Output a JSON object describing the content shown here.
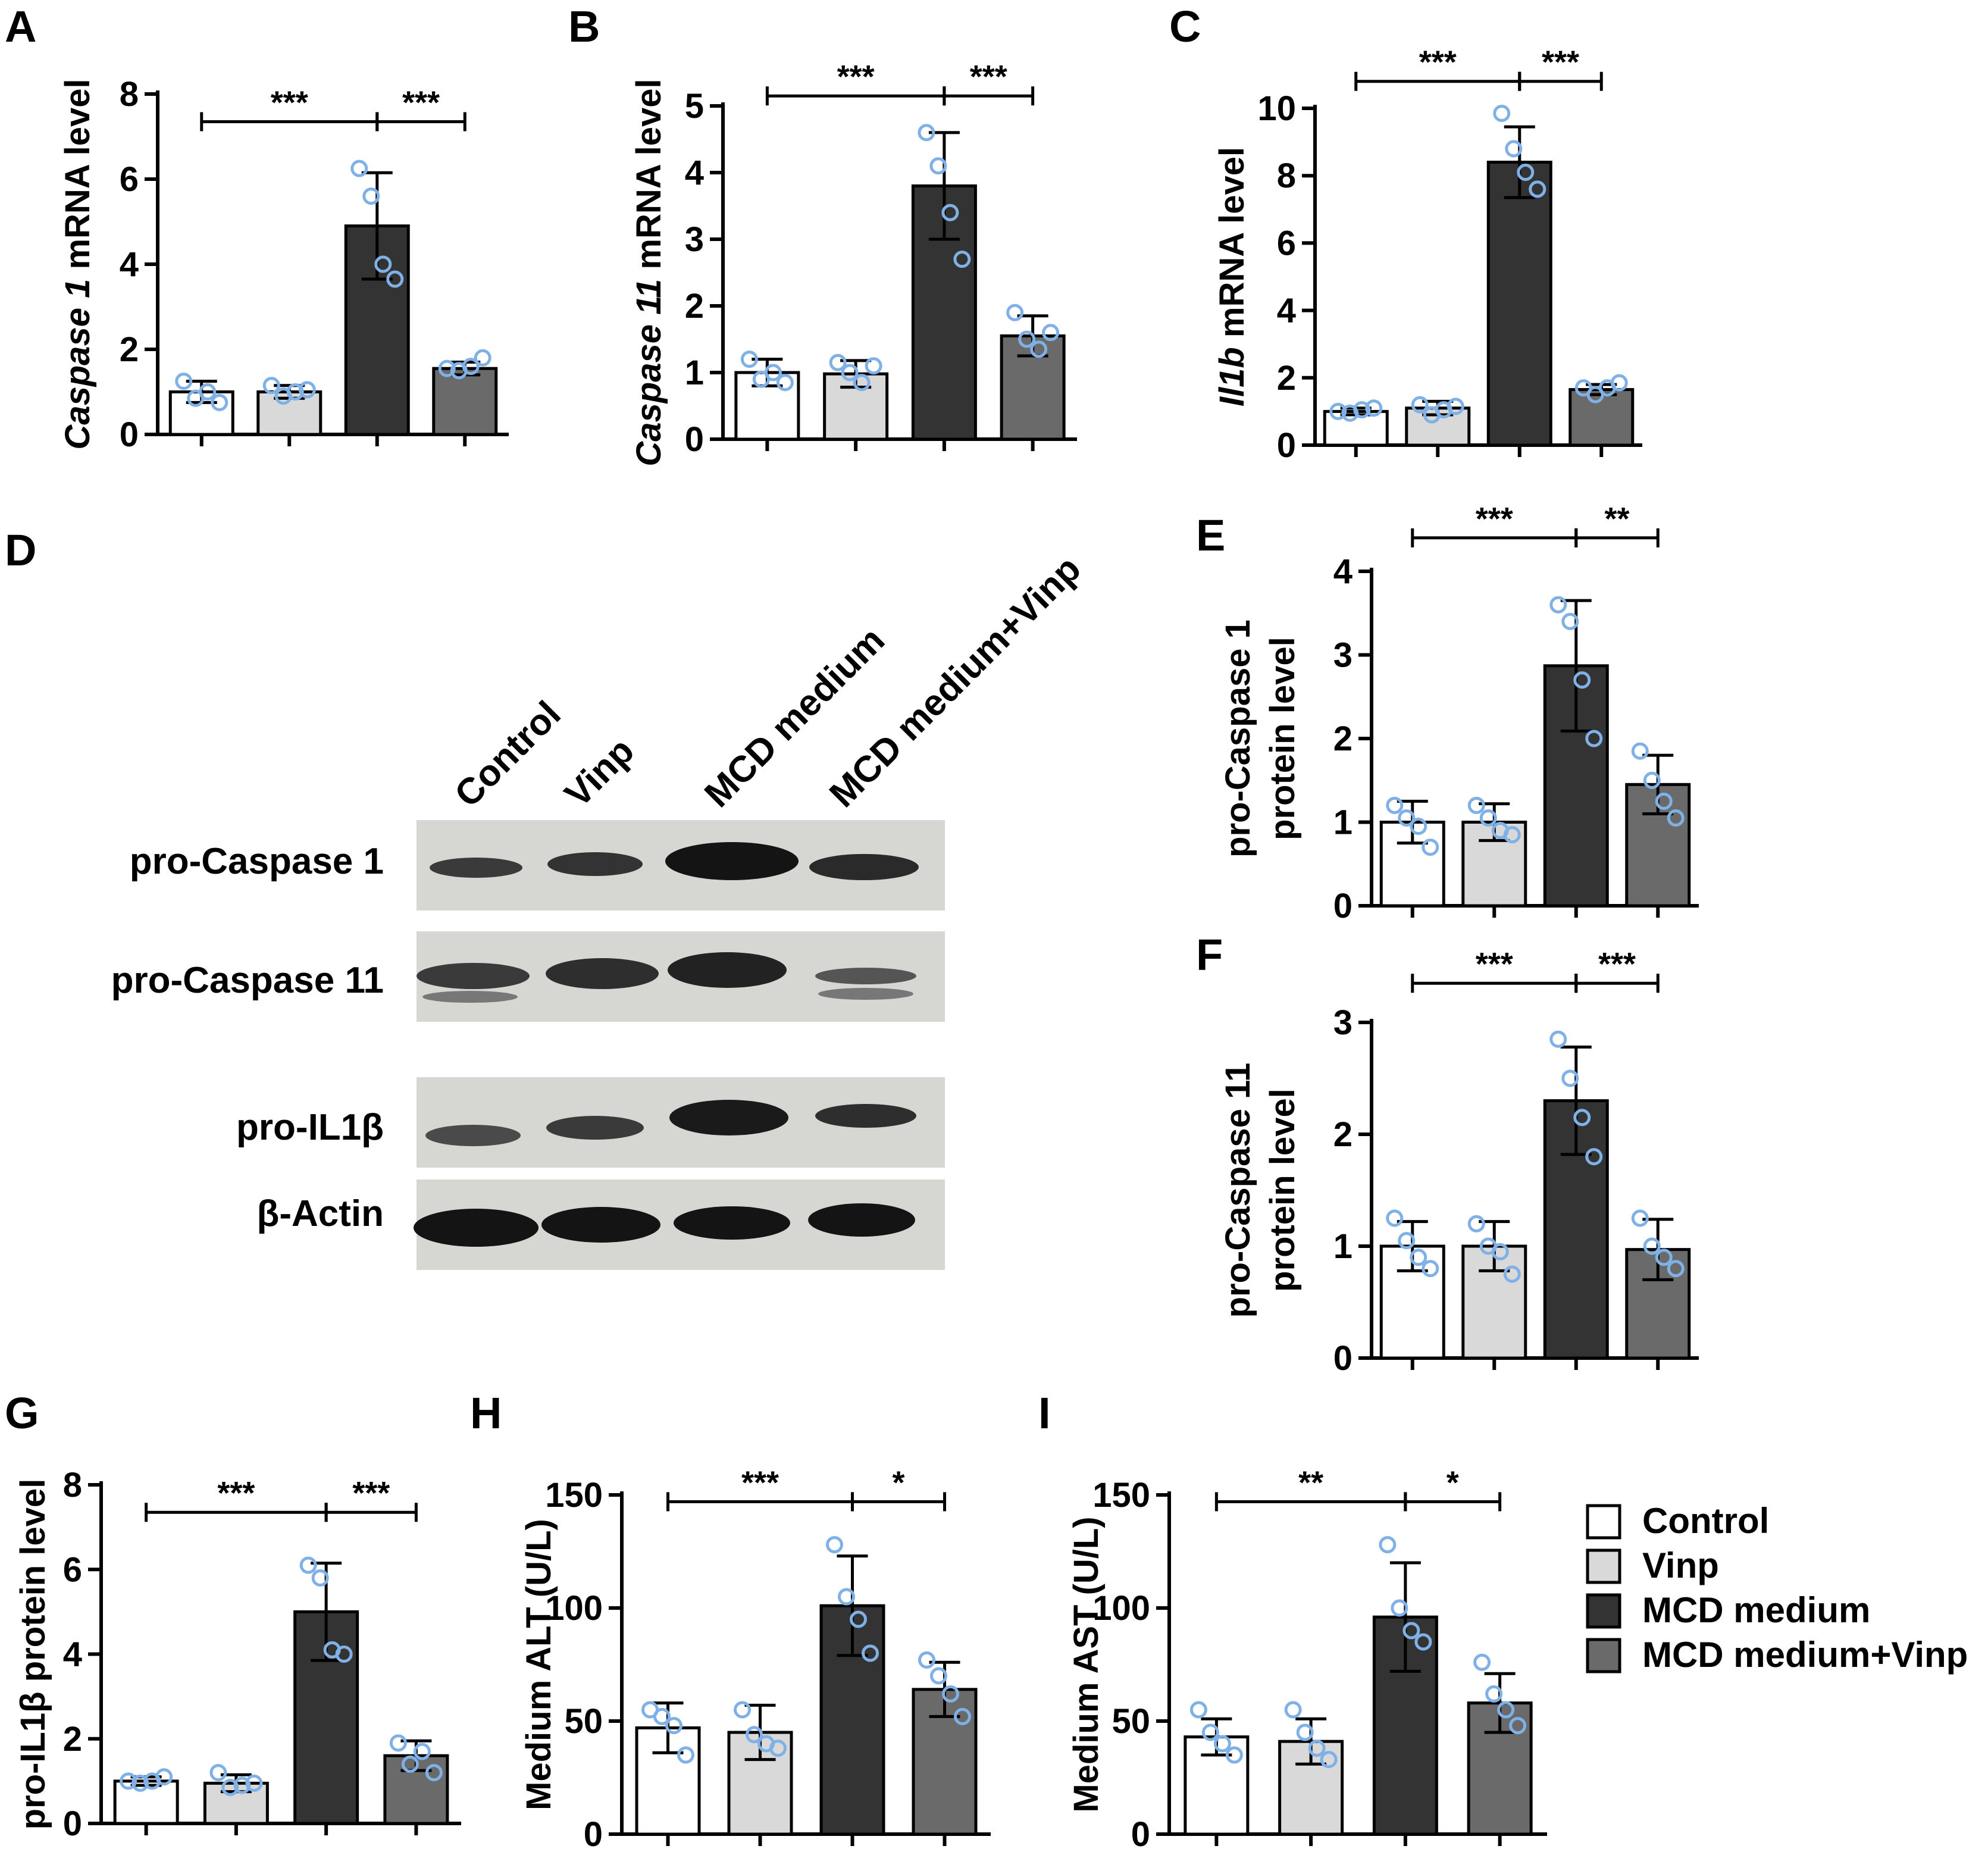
{
  "colors": {
    "Control": "#ffffff",
    "Vinp": "#d9d9d9",
    "MCD medium": "#333333",
    "MCD medium+Vinp": "#6a6a6a",
    "points": "#7fb0e6",
    "axis": "#000000"
  },
  "legend": {
    "items": [
      "Control",
      "Vinp",
      "MCD medium",
      "MCD medium+Vinp"
    ],
    "placement": "bottom-right"
  },
  "western_blot": {
    "letter": "D",
    "lanes": [
      "Control",
      "Vinp",
      "MCD medium",
      "MCD medium+Vinp"
    ],
    "rows": [
      "pro-Caspase 1",
      "pro-Caspase 11",
      "pro-IL1β",
      "β-Actin"
    ]
  },
  "chart_data": [
    {
      "letter": "A",
      "type": "bar",
      "categories": [
        "Control",
        "Vinp",
        "MCD medium",
        "MCD medium+Vinp"
      ],
      "values": [
        1.0,
        1.0,
        4.9,
        1.55
      ],
      "errors": [
        0.25,
        0.15,
        1.25,
        0.15
      ],
      "points": [
        [
          1.25,
          0.85,
          1.0,
          0.75
        ],
        [
          1.15,
          0.9,
          1.0,
          1.05
        ],
        [
          6.25,
          5.6,
          4.0,
          3.65
        ],
        [
          1.55,
          1.5,
          1.6,
          1.8
        ]
      ],
      "ylabel_italic": "Caspase 1",
      "ylabel_rest": " mRNA level",
      "ylim": [
        0,
        8
      ],
      "yticks": [
        0,
        2,
        4,
        6,
        8
      ],
      "significance": [
        {
          "from": 0,
          "to": 2,
          "label": "***",
          "y": 7.35
        },
        {
          "from": 2,
          "to": 3,
          "label": "***",
          "y": 7.35
        }
      ]
    },
    {
      "letter": "B",
      "type": "bar",
      "categories": [
        "Control",
        "Vinp",
        "MCD medium",
        "MCD medium+Vinp"
      ],
      "values": [
        1.0,
        0.98,
        3.8,
        1.55
      ],
      "errors": [
        0.2,
        0.2,
        0.8,
        0.3
      ],
      "points": [
        [
          1.2,
          0.9,
          1.0,
          0.85
        ],
        [
          1.15,
          1.0,
          0.85,
          1.1
        ],
        [
          4.6,
          4.1,
          3.4,
          2.7
        ],
        [
          1.9,
          1.5,
          1.35,
          1.6
        ]
      ],
      "ylabel_italic": "Caspase 11",
      "ylabel_rest": " mRNA level",
      "ylim": [
        0,
        5
      ],
      "yticks": [
        0,
        1,
        2,
        3,
        4,
        5
      ],
      "significance": [
        {
          "from": 0,
          "to": 2,
          "label": "***",
          "y": 5.15
        },
        {
          "from": 2,
          "to": 3,
          "label": "***",
          "y": 5.15
        }
      ]
    },
    {
      "letter": "C",
      "type": "bar",
      "categories": [
        "Control",
        "Vinp",
        "MCD medium",
        "MCD medium+Vinp"
      ],
      "values": [
        1.0,
        1.1,
        8.4,
        1.65
      ],
      "errors": [
        0.1,
        0.2,
        1.05,
        0.15
      ],
      "points": [
        [
          1.0,
          0.95,
          1.05,
          1.1
        ],
        [
          1.2,
          0.9,
          1.05,
          1.15
        ],
        [
          9.85,
          8.8,
          8.1,
          7.6
        ],
        [
          1.7,
          1.5,
          1.7,
          1.85
        ]
      ],
      "ylabel_italic": "Il1b",
      "ylabel_rest": " mRNA level",
      "ylim": [
        0,
        10
      ],
      "yticks": [
        0,
        2,
        4,
        6,
        8,
        10
      ],
      "significance": [
        {
          "from": 0,
          "to": 2,
          "label": "***",
          "y": 10.8
        },
        {
          "from": 2,
          "to": 3,
          "label": "***",
          "y": 10.8
        }
      ]
    },
    {
      "letter": "E",
      "type": "bar",
      "categories": [
        "Control",
        "Vinp",
        "MCD medium",
        "MCD medium+Vinp"
      ],
      "values": [
        1.0,
        1.0,
        2.87,
        1.45
      ],
      "errors": [
        0.25,
        0.22,
        0.78,
        0.35
      ],
      "points": [
        [
          1.2,
          1.05,
          0.95,
          0.7
        ],
        [
          1.2,
          1.05,
          0.9,
          0.85
        ],
        [
          3.6,
          3.4,
          2.7,
          2.0
        ],
        [
          1.85,
          1.5,
          1.25,
          1.05
        ]
      ],
      "ylabel_line1": "pro-Caspase 1",
      "ylabel_line2": "protein level",
      "ylim": [
        0,
        4
      ],
      "yticks": [
        0,
        1,
        2,
        3,
        4
      ],
      "significance": [
        {
          "from": 0,
          "to": 2,
          "label": "***",
          "y": 4.4
        },
        {
          "from": 2,
          "to": 3,
          "label": "**",
          "y": 4.4
        }
      ]
    },
    {
      "letter": "F",
      "type": "bar",
      "categories": [
        "Control",
        "Vinp",
        "MCD medium",
        "MCD medium+Vinp"
      ],
      "values": [
        1.0,
        1.0,
        2.3,
        0.97
      ],
      "errors": [
        0.22,
        0.22,
        0.48,
        0.27
      ],
      "points": [
        [
          1.25,
          1.05,
          0.9,
          0.8
        ],
        [
          1.2,
          1.0,
          0.95,
          0.75
        ],
        [
          2.85,
          2.5,
          2.15,
          1.8
        ],
        [
          1.25,
          1.0,
          0.9,
          0.8
        ]
      ],
      "ylabel_line1": "pro-Caspase 11",
      "ylabel_line2": "protein level",
      "ylim": [
        0,
        3
      ],
      "yticks": [
        0,
        1,
        2,
        3
      ],
      "significance": [
        {
          "from": 0,
          "to": 2,
          "label": "***",
          "y": 3.35
        },
        {
          "from": 2,
          "to": 3,
          "label": "***",
          "y": 3.35
        }
      ]
    },
    {
      "letter": "G",
      "type": "bar",
      "categories": [
        "Control",
        "Vinp",
        "MCD medium",
        "MCD medium+Vinp"
      ],
      "values": [
        1.0,
        0.95,
        5.0,
        1.6
      ],
      "errors": [
        0.1,
        0.2,
        1.15,
        0.35
      ],
      "points": [
        [
          1.0,
          0.95,
          1.0,
          1.1
        ],
        [
          1.2,
          0.85,
          0.9,
          0.95
        ],
        [
          6.1,
          5.8,
          4.1,
          4.0
        ],
        [
          1.9,
          1.4,
          1.7,
          1.2
        ]
      ],
      "ylabel": "pro-IL1β protein level",
      "ylim": [
        0,
        8
      ],
      "yticks": [
        0,
        2,
        4,
        6,
        8
      ],
      "significance": [
        {
          "from": 0,
          "to": 2,
          "label": "***",
          "y": 7.35
        },
        {
          "from": 2,
          "to": 3,
          "label": "***",
          "y": 7.35
        }
      ]
    },
    {
      "letter": "H",
      "type": "bar",
      "categories": [
        "Control",
        "Vinp",
        "MCD medium",
        "MCD medium+Vinp"
      ],
      "values": [
        47,
        45,
        101,
        64
      ],
      "errors": [
        11,
        12,
        22,
        12
      ],
      "points": [
        [
          55,
          52,
          48,
          35
        ],
        [
          55,
          44,
          40,
          38
        ],
        [
          128,
          105,
          95,
          80
        ],
        [
          77,
          70,
          62,
          52
        ]
      ],
      "ylabel": "Medium ALT (U/L)",
      "ylim": [
        0,
        150
      ],
      "yticks": [
        0,
        50,
        100,
        150
      ],
      "significance": [
        {
          "from": 0,
          "to": 2,
          "label": "***",
          "y": 147
        },
        {
          "from": 2,
          "to": 3,
          "label": "*",
          "y": 147
        }
      ]
    },
    {
      "letter": "I",
      "type": "bar",
      "categories": [
        "Control",
        "Vinp",
        "MCD medium",
        "MCD medium+Vinp"
      ],
      "values": [
        43,
        41,
        96,
        58
      ],
      "errors": [
        8,
        10,
        24,
        13
      ],
      "points": [
        [
          55,
          45,
          40,
          35
        ],
        [
          55,
          45,
          38,
          33
        ],
        [
          128,
          100,
          90,
          85
        ],
        [
          76,
          62,
          55,
          48
        ]
      ],
      "ylabel": "Medium AST (U/L)",
      "ylim": [
        0,
        150
      ],
      "yticks": [
        0,
        50,
        100,
        150
      ],
      "significance": [
        {
          "from": 0,
          "to": 2,
          "label": "**",
          "y": 147
        },
        {
          "from": 2,
          "to": 3,
          "label": "*",
          "y": 147
        }
      ]
    }
  ]
}
